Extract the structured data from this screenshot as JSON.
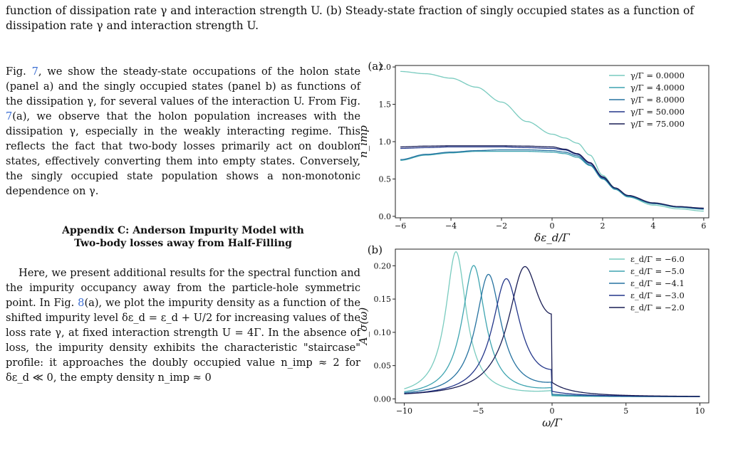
{
  "caption": {
    "line1": "function of dissipation rate γ and interaction strength U. (b) Steady-state fraction of singly occupied states as a function of",
    "line2": "dissipation rate γ and interaction strength U."
  },
  "body": {
    "para1_pre": "Fig. ",
    "para1_ref1": "7",
    "para1_mid": ", we show the steady-state occupations of the holon state (panel a) and the singly occupied states (panel b) as functions of the dissipation γ, for several values of the interaction U. From Fig. ",
    "para1_ref2": "7",
    "para1_post": "(a), we observe that the holon population increases with the dissipation γ, especially in the weakly interacting regime. This reflects the fact that two-body losses primarily act on doublon states, effectively converting them into empty states. Conversely, the singly occupied state population shows a non-monotonic dependence on γ.",
    "appendix_line1": "Appendix C: Anderson Impurity Model with",
    "appendix_line2": "Two-body losses away from Half-Filling",
    "para2_pre": "Here, we present additional results for the spectral function and the impurity occupancy away from the particle-hole symmetric point. In Fig. ",
    "para2_ref": "8",
    "para2_post": "(a), we plot the impurity density as a function of the shifted impurity level δε_d = ε_d + U/2 for increasing values of the loss rate γ, at fixed interaction strength U = 4Γ. In the absence of loss, the impurity density exhibits the characteristic \"staircase\" profile: it approaches the doubly occupied value n_imp ≈ 2 for δε_d ≪ 0, the empty density n_imp ≈ 0"
  },
  "colors": [
    "#79cbbf",
    "#3ea4b0",
    "#2672a0",
    "#23368a",
    "#1a1e55"
  ],
  "chart_data": [
    {
      "type": "line",
      "panel_label": "(a)",
      "xlabel": "δε_d/Γ",
      "ylabel": "n_imp",
      "xlim": [
        -6.2,
        6.2
      ],
      "ylim": [
        -0.02,
        2.02
      ],
      "xticks": [
        -6,
        -4,
        -2,
        0,
        2,
        4,
        6
      ],
      "yticks": [
        0.0,
        0.5,
        1.0,
        1.5,
        2.0
      ],
      "xtick_labels": [
        "−6",
        "−4",
        "−2",
        "0",
        "2",
        "4",
        "6"
      ],
      "ytick_labels": [
        "0.0",
        "0.5",
        "1.0",
        "1.5",
        "2.0"
      ],
      "legend_position": "top-right",
      "x": [
        -6,
        -5,
        -4,
        -3,
        -2,
        -1,
        0,
        0.5,
        1,
        1.5,
        2,
        2.5,
        3,
        4,
        5,
        6
      ],
      "series": [
        {
          "name": "γ/Γ = 0.0000",
          "values": [
            1.94,
            1.91,
            1.85,
            1.73,
            1.53,
            1.27,
            1.1,
            1.05,
            0.98,
            0.82,
            0.55,
            0.38,
            0.26,
            0.15,
            0.1,
            0.07
          ]
        },
        {
          "name": "γ/Γ = 4.0000",
          "values": [
            0.75,
            0.82,
            0.85,
            0.87,
            0.87,
            0.87,
            0.86,
            0.84,
            0.79,
            0.68,
            0.5,
            0.36,
            0.26,
            0.17,
            0.12,
            0.095
          ]
        },
        {
          "name": "γ/Γ = 8.0000",
          "values": [
            0.76,
            0.83,
            0.86,
            0.88,
            0.89,
            0.89,
            0.88,
            0.86,
            0.81,
            0.69,
            0.51,
            0.37,
            0.27,
            0.17,
            0.125,
            0.1
          ]
        },
        {
          "name": "γ/Γ = 50.000",
          "values": [
            0.91,
            0.92,
            0.93,
            0.93,
            0.93,
            0.92,
            0.91,
            0.89,
            0.83,
            0.71,
            0.52,
            0.38,
            0.28,
            0.18,
            0.13,
            0.105
          ]
        },
        {
          "name": "γ/Γ = 75.000",
          "values": [
            0.93,
            0.94,
            0.945,
            0.945,
            0.945,
            0.94,
            0.93,
            0.9,
            0.84,
            0.72,
            0.53,
            0.38,
            0.28,
            0.18,
            0.13,
            0.11
          ]
        }
      ]
    },
    {
      "type": "line",
      "panel_label": "(b)",
      "xlabel": "ω/Γ",
      "ylabel": "A_σ(ω)",
      "xlim": [
        -10.6,
        10.6
      ],
      "ylim": [
        -0.006,
        0.225
      ],
      "xticks": [
        -10,
        -5,
        0,
        5,
        10
      ],
      "yticks": [
        0.0,
        0.05,
        0.1,
        0.15,
        0.2
      ],
      "xtick_labels": [
        "−10",
        "−5",
        "0",
        "5",
        "10"
      ],
      "ytick_labels": [
        "0.00",
        "0.05",
        "0.10",
        "0.15",
        "0.20"
      ],
      "legend_position": "top-right",
      "series": [
        {
          "name": "ε_d/Γ = −6.0",
          "peak_x": -6.5,
          "peak_y": 0.218,
          "width": 0.85,
          "step_after_zero": 0.006
        },
        {
          "name": "ε_d/Γ = −5.0",
          "peak_x": -5.3,
          "peak_y": 0.197,
          "width": 0.95,
          "step_after_zero": 0.008
        },
        {
          "name": "ε_d/Γ = −4.1",
          "peak_x": -4.3,
          "peak_y": 0.183,
          "width": 1.05,
          "step_after_zero": 0.012
        },
        {
          "name": "ε_d/Γ = −3.0",
          "peak_x": -3.1,
          "peak_y": 0.174,
          "width": 1.15,
          "step_after_zero": 0.02
        },
        {
          "name": "ε_d/Γ = −2.0",
          "peak_x": -1.9,
          "peak_y": 0.171,
          "width": 1.3,
          "step_after_zero": 0.07
        }
      ]
    }
  ]
}
